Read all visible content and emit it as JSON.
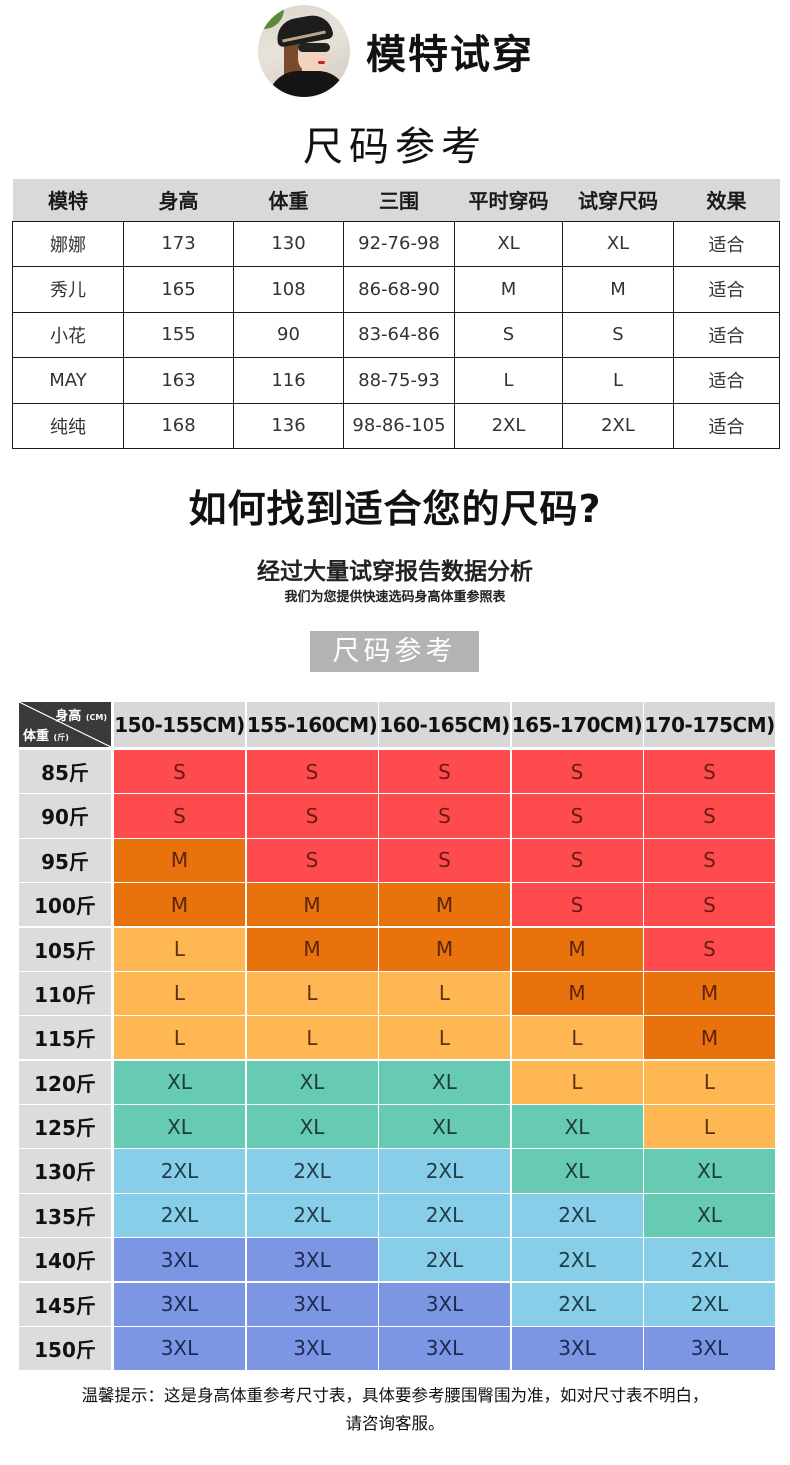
{
  "header": {
    "model_title": "模特试穿",
    "size_title": "尺码参考",
    "avatar_icon": "model-photo"
  },
  "model_table": {
    "columns": [
      "模特",
      "身高",
      "体重",
      "三围",
      "平时穿码",
      "试穿尺码",
      "效果"
    ],
    "rows": [
      [
        "娜娜",
        "173",
        "130",
        "92-76-98",
        "XL",
        "XL",
        "适合"
      ],
      [
        "秀儿",
        "165",
        "108",
        "86-68-90",
        "M",
        "M",
        "适合"
      ],
      [
        "小花",
        "155",
        "90",
        "83-64-86",
        "S",
        "S",
        "适合"
      ],
      [
        "MAY",
        "163",
        "116",
        "88-75-93",
        "L",
        "L",
        "适合"
      ],
      [
        "纯纯",
        "168",
        "136",
        "98-86-105",
        "2XL",
        "2XL",
        "适合"
      ]
    ]
  },
  "guide": {
    "question": "如何找到适合您的尺码?",
    "subtitle": "经过大量试穿报告数据分析",
    "subtitle_small": "我们为您提供快速选码身高体重参照表",
    "badge": "尺码参考"
  },
  "size_grid": {
    "corner": {
      "height_label": "身高",
      "height_unit": "(CM)",
      "weight_label": "体重",
      "weight_unit": "(斤)"
    },
    "columns": [
      "150-155CM)",
      "155-160CM)",
      "160-165CM)",
      "165-170CM)",
      "170-175CM)"
    ],
    "rows": [
      {
        "weight": "85斤",
        "sizes": [
          "S",
          "S",
          "S",
          "S",
          "S"
        ]
      },
      {
        "weight": "90斤",
        "sizes": [
          "S",
          "S",
          "S",
          "S",
          "S"
        ]
      },
      {
        "weight": "95斤",
        "sizes": [
          "M",
          "S",
          "S",
          "S",
          "S"
        ]
      },
      {
        "weight": "100斤",
        "sizes": [
          "M",
          "M",
          "M",
          "S",
          "S"
        ]
      },
      {
        "weight": "105斤",
        "sizes": [
          "L",
          "M",
          "M",
          "M",
          "S"
        ]
      },
      {
        "weight": "110斤",
        "sizes": [
          "L",
          "L",
          "L",
          "M",
          "M"
        ]
      },
      {
        "weight": "115斤",
        "sizes": [
          "L",
          "L",
          "L",
          "L",
          "M"
        ]
      },
      {
        "weight": "120斤",
        "sizes": [
          "XL",
          "XL",
          "XL",
          "L",
          "L"
        ]
      },
      {
        "weight": "125斤",
        "sizes": [
          "XL",
          "XL",
          "XL",
          "XL",
          "L"
        ]
      },
      {
        "weight": "130斤",
        "sizes": [
          "2XL",
          "2XL",
          "2XL",
          "XL",
          "XL"
        ]
      },
      {
        "weight": "135斤",
        "sizes": [
          "2XL",
          "2XL",
          "2XL",
          "2XL",
          "XL"
        ]
      },
      {
        "weight": "140斤",
        "sizes": [
          "3XL",
          "3XL",
          "2XL",
          "2XL",
          "2XL"
        ]
      },
      {
        "weight": "145斤",
        "sizes": [
          "3XL",
          "3XL",
          "3XL",
          "2XL",
          "2XL"
        ]
      },
      {
        "weight": "150斤",
        "sizes": [
          "3XL",
          "3XL",
          "3XL",
          "3XL",
          "3XL"
        ]
      }
    ],
    "size_colors": {
      "S": {
        "bg": "#fe4b4e",
        "fg": "#6a1a14"
      },
      "M": {
        "bg": "#e8720c",
        "fg": "#5a2408"
      },
      "L": {
        "bg": "#feb752",
        "fg": "#5a3410"
      },
      "XL": {
        "bg": "#66cbb2",
        "fg": "#1d3e34"
      },
      "2XL": {
        "bg": "#88cee8",
        "fg": "#1f3c48"
      },
      "3XL": {
        "bg": "#7c96e4",
        "fg": "#1c2a50"
      }
    }
  },
  "footer": {
    "tip_line1": "温馨提示：这是身高体重参考尺寸表，具体要参考腰围臀围为准，如对尺寸表不明白，",
    "tip_line2": "请咨询客服。"
  }
}
